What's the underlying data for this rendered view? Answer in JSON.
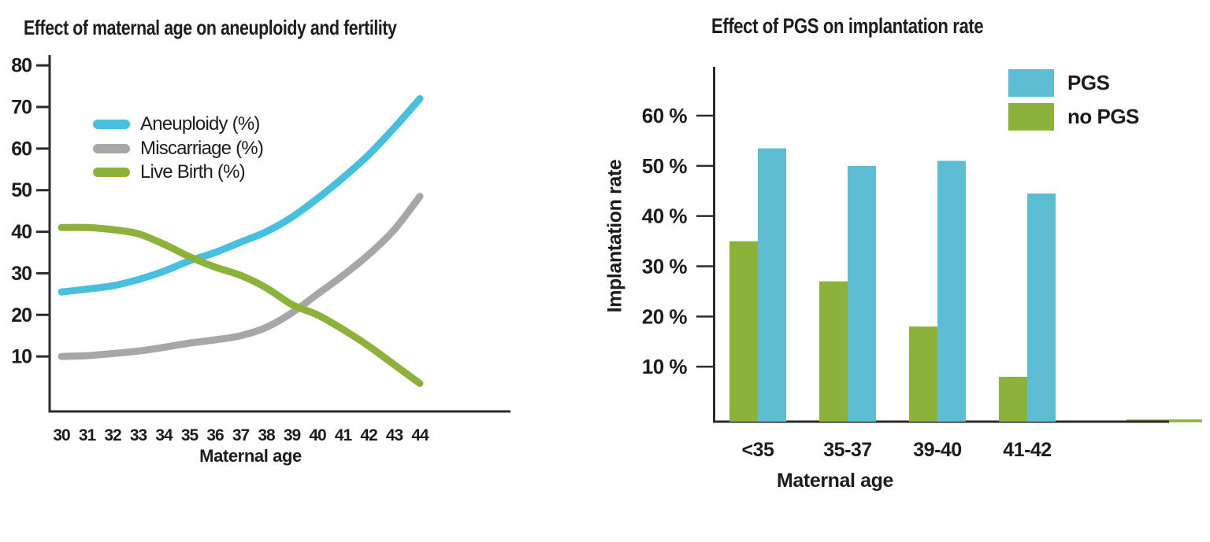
{
  "canvas": {
    "background": "#ffffff",
    "axis_color": "#2b2b2b",
    "text_color": "#1c1c1c"
  },
  "chart_data": [
    {
      "type": "line",
      "title": "Effect of maternal age on aneuploidy and fertility",
      "xlabel": "Maternal age",
      "ylabel": "",
      "x": [
        30,
        31,
        32,
        33,
        34,
        35,
        36,
        37,
        38,
        39,
        40,
        41,
        42,
        43,
        44
      ],
      "yticks": [
        10,
        20,
        30,
        40,
        50,
        60,
        70,
        80
      ],
      "ylim": [
        0,
        85
      ],
      "grid": false,
      "legend_position": "upper-left-inside",
      "series": [
        {
          "name": "Aneuploidy (%)",
          "color": "#47BFDF",
          "values": [
            25.5,
            26.2,
            27,
            28.5,
            30.5,
            33,
            35,
            37.5,
            40,
            43.5,
            48,
            53,
            58.5,
            65,
            72
          ]
        },
        {
          "name": "Miscarriage (%)",
          "color": "#A7A7A7",
          "values": [
            10,
            10.2,
            10.7,
            11.3,
            12.2,
            13.2,
            14,
            15,
            17,
            20.5,
            25,
            29.5,
            34.5,
            40.5,
            48.5
          ]
        },
        {
          "name": "Live Birth (%)",
          "color": "#8CB23C",
          "values": [
            41,
            41,
            40.5,
            39.5,
            37,
            34,
            31.5,
            29.5,
            26.5,
            22.5,
            20,
            16.5,
            12.5,
            8,
            3.5
          ]
        }
      ]
    },
    {
      "type": "bar",
      "title": "Effect of PGS on implantation rate",
      "xlabel": "Maternal age",
      "ylabel": "Implantation rate",
      "categories": [
        "<35",
        "35-37",
        "39-40",
        "41-42"
      ],
      "yticks": [
        {
          "value": 10,
          "label": "10 %"
        },
        {
          "value": 20,
          "label": "20 %"
        },
        {
          "value": 30,
          "label": "30 %"
        },
        {
          "value": 40,
          "label": "40 %"
        },
        {
          "value": 50,
          "label": "50 %"
        },
        {
          "value": 60,
          "label": "60 %"
        }
      ],
      "ylim": [
        0,
        68
      ],
      "grid": false,
      "legend_position": "upper-right",
      "series": [
        {
          "name": "PGS",
          "color": "#5CBDD3",
          "values": [
            53.5,
            50,
            51,
            44.5
          ]
        },
        {
          "name": "no PGS",
          "color": "#8CB23C",
          "values": [
            35,
            27,
            18,
            8
          ]
        }
      ]
    }
  ]
}
